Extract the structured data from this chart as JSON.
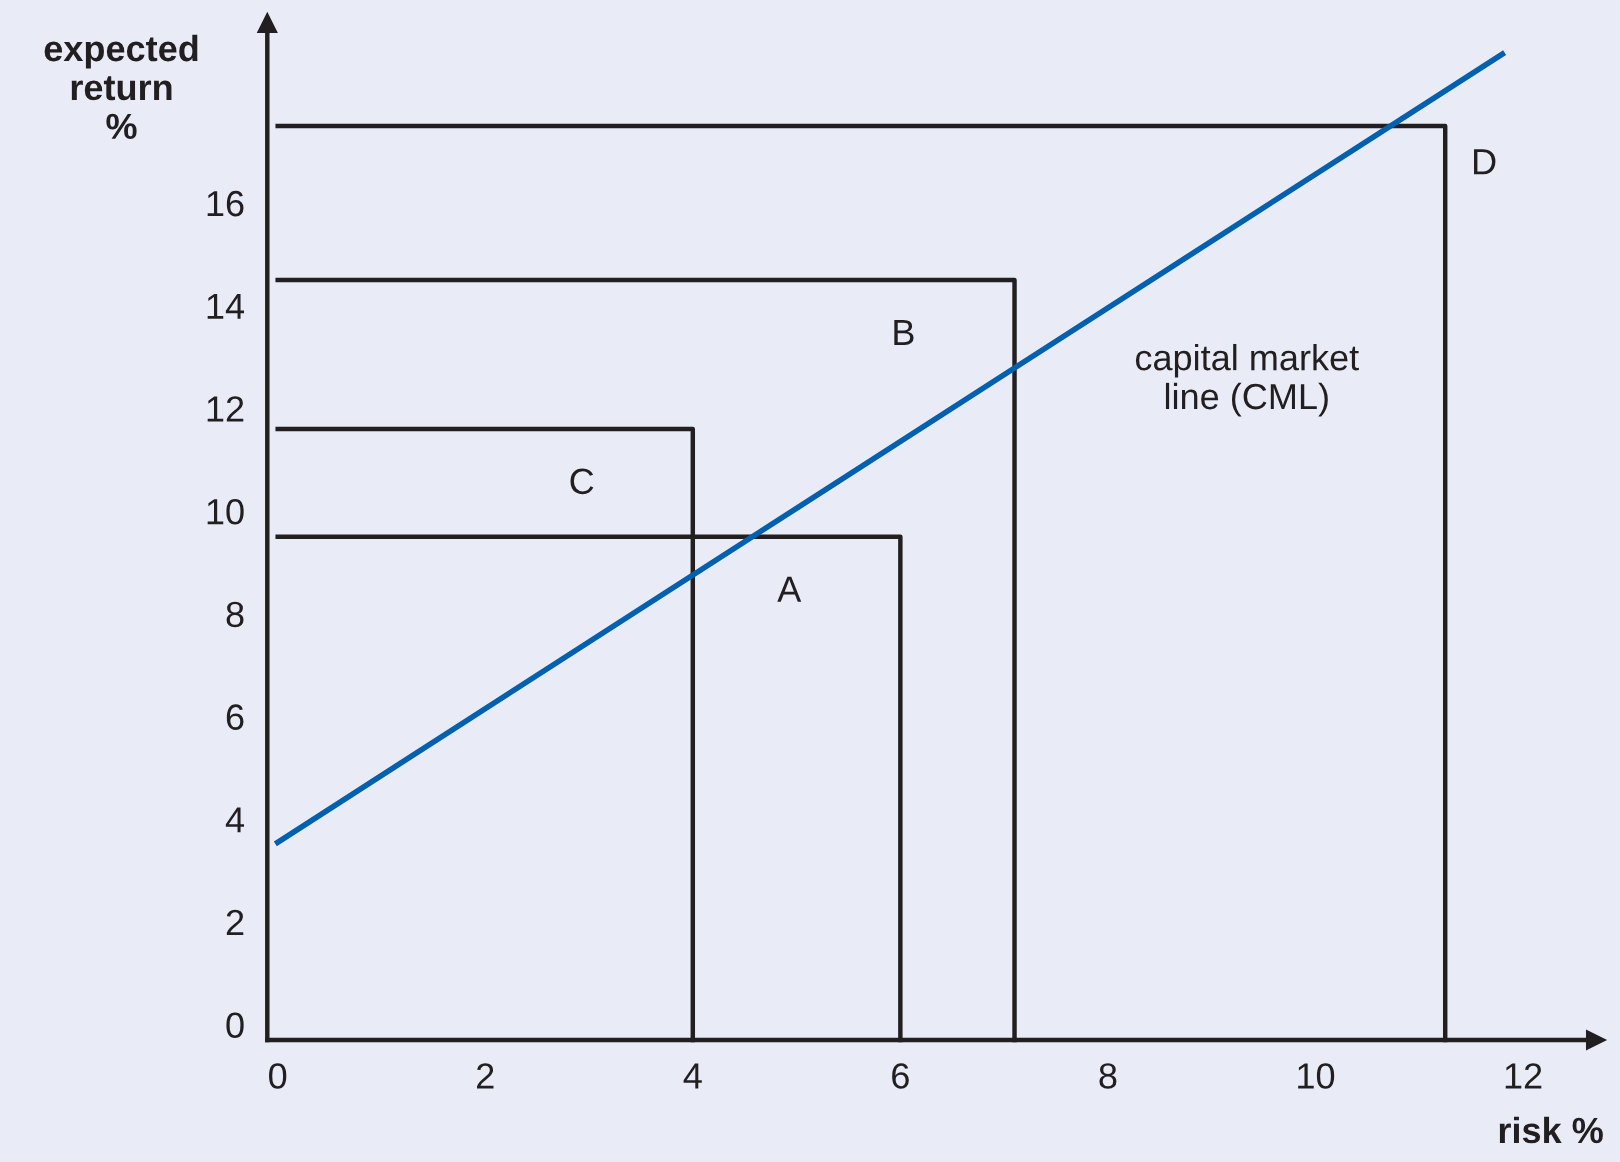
{
  "chart_data": {
    "type": "line",
    "xlabel": "risk %",
    "ylabel": "expected\nreturn\n%",
    "xlim": [
      -0.1,
      12.7
    ],
    "ylim": [
      -0.3,
      19.5
    ],
    "xticks": [
      0,
      2,
      4,
      6,
      8,
      10,
      12
    ],
    "yticks": [
      0,
      2,
      4,
      6,
      8,
      10,
      12,
      14,
      16
    ],
    "grid": false,
    "legend": false,
    "marker": "none",
    "line_style": "solid",
    "series": [
      {
        "name": "A",
        "color": "#231f20",
        "x": [
          0,
          6.0,
          6.0
        ],
        "values": [
          9.5,
          9.5,
          -0.3
        ]
      },
      {
        "name": "B",
        "color": "#231f20",
        "x": [
          0,
          7.1,
          7.1
        ],
        "values": [
          14.5,
          14.5,
          -0.3
        ]
      },
      {
        "name": "C",
        "color": "#231f20",
        "x": [
          0,
          4.0,
          4.0
        ],
        "values": [
          11.6,
          11.6,
          -0.3
        ]
      },
      {
        "name": "D",
        "color": "#231f20",
        "x": [
          0,
          11.25,
          11.25
        ],
        "values": [
          17.5,
          17.5,
          -0.3
        ]
      },
      {
        "name": "capital market\nline (CML)",
        "color": "#0060b0",
        "x": [
          0,
          11.8
        ],
        "values": [
          3.55,
          18.9
        ]
      }
    ]
  }
}
